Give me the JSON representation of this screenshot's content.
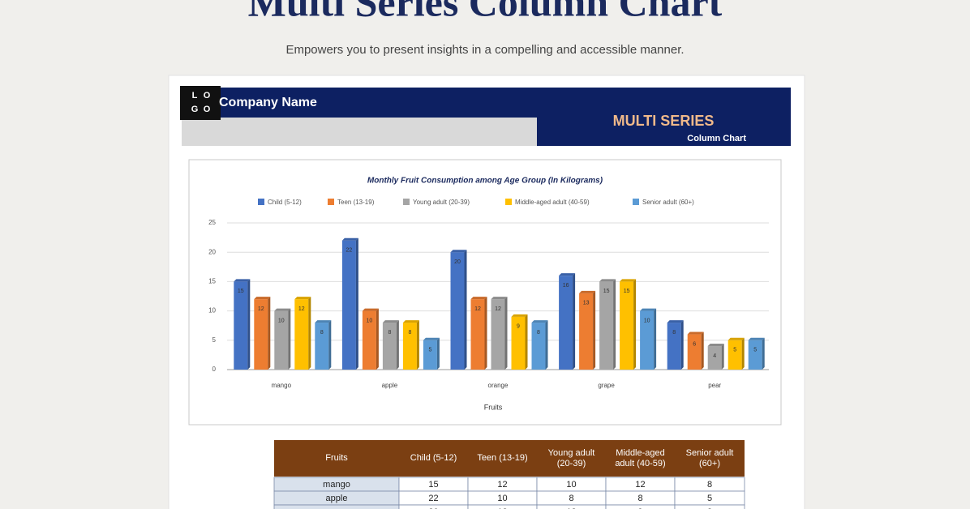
{
  "page": {
    "title": "Multi Series Column Chart",
    "subtitle": "Empowers you to present insights in a compelling and accessible manner."
  },
  "document": {
    "logo": [
      "L",
      "O",
      "G",
      "O"
    ],
    "company": "Company Name",
    "heading": "MULTI SERIES",
    "subheading": "Column Chart"
  },
  "chart_data": {
    "type": "bar",
    "title": "Monthly Fruit Consumption among Age Group (In Kilograms)",
    "x_label": "Fruits",
    "categories": [
      "mango",
      "apple",
      "orange",
      "grape",
      "pear"
    ],
    "series": [
      {
        "name": "Child (5-12)",
        "color": "#4472c4",
        "values": [
          15,
          22,
          20,
          16,
          8
        ]
      },
      {
        "name": "Teen (13-19)",
        "color": "#ed7d31",
        "values": [
          12,
          10,
          12,
          13,
          6
        ]
      },
      {
        "name": "Young adult (20-39)",
        "color": "#a5a5a5",
        "values": [
          10,
          8,
          12,
          15,
          4
        ]
      },
      {
        "name": "Middle-aged adult (40-59)",
        "color": "#ffc000",
        "values": [
          12,
          8,
          9,
          15,
          5
        ]
      },
      {
        "name": "Senior adult (60+)",
        "color": "#5b9bd5",
        "values": [
          8,
          5,
          8,
          10,
          5
        ]
      }
    ],
    "ylim": [
      0,
      25
    ],
    "yticks": [
      0,
      5,
      10,
      15,
      20,
      25
    ],
    "grid": true,
    "legend": "top"
  }
}
